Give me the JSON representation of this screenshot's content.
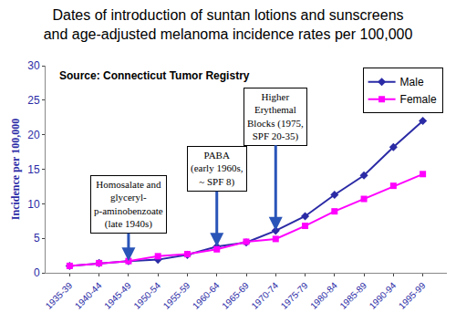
{
  "chart_data": {
    "type": "line",
    "title": "Dates of introduction of suntan lotions and sunscreens\nand age-adjusted melanoma incidence rates per 100,000",
    "subtitle": "Source: Connecticut Tumor Registry",
    "y_label": "Incidence per 100,000",
    "categories": [
      "1935-39",
      "1940-44",
      "1945-49",
      "1950-54",
      "1955-59",
      "1960-64",
      "1965-69",
      "1970-74",
      "1975-79",
      "1980-84",
      "1985-89",
      "1990-94",
      "1995-99"
    ],
    "series": [
      {
        "name": "Male",
        "color": "#2b2ba6",
        "marker": "diamond",
        "line_style": "solid",
        "values": [
          1.0,
          1.4,
          1.7,
          1.9,
          2.6,
          3.8,
          4.4,
          6.1,
          8.2,
          11.3,
          14.1,
          18.2,
          22.0
        ]
      },
      {
        "name": "Female",
        "color": "#ff00ff",
        "marker": "square",
        "line_style": "solid",
        "values": [
          1.0,
          1.4,
          1.7,
          2.4,
          2.7,
          3.4,
          4.5,
          4.9,
          6.8,
          8.9,
          10.7,
          12.6,
          14.3
        ]
      }
    ],
    "ylim": [
      0,
      30
    ],
    "yticks": [
      0,
      5,
      10,
      15,
      20,
      25,
      30
    ],
    "grid": false,
    "legend": "upper right",
    "annotations": [
      {
        "text": "Homosalate and\nglyceryl-\np-aminobenzoate\n(late 1940s)",
        "category": "1945-49"
      },
      {
        "text": "PABA\n(early 1960s,\n~ SPF 8)",
        "category": "1960-64"
      },
      {
        "text": "Higher\nErythemal\nBlocks (1975,\nSPF 20-35)",
        "category": "1970-74"
      }
    ]
  }
}
